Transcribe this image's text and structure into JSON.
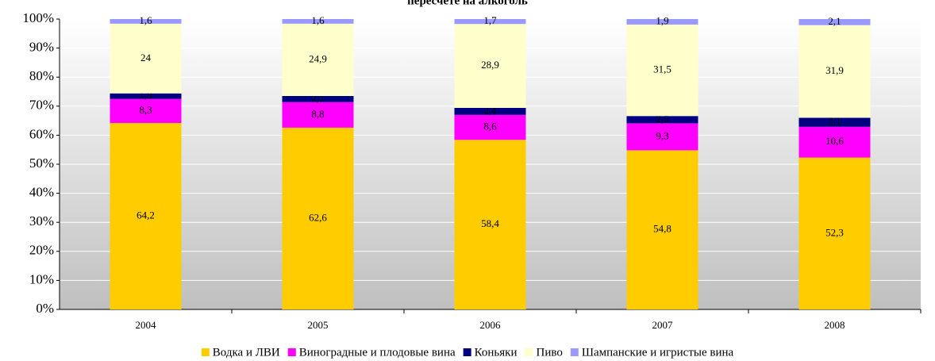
{
  "chart_data": {
    "type": "stacked_bar",
    "title": "пересчете на алкоголь",
    "categories": [
      "2004",
      "2005",
      "2006",
      "2007",
      "2008"
    ],
    "series": [
      {
        "name": "Водка и ЛВИ",
        "color": "#ffcc00",
        "values": [
          64.2,
          62.6,
          58.4,
          54.8,
          52.3
        ],
        "value_labels": [
          "64,2",
          "62,6",
          "58,4",
          "54,8",
          "52,3"
        ]
      },
      {
        "name": "Виноградные и плодовые вина",
        "color": "#ff00ff",
        "values": [
          8.3,
          8.8,
          8.6,
          9.3,
          10.6
        ],
        "value_labels": [
          "8,3",
          "8,8",
          "8,6",
          "9,3",
          "10,6"
        ]
      },
      {
        "name": "Коньяки",
        "color": "#000080",
        "values": [
          1.9,
          2.1,
          2.4,
          2.5,
          3.1
        ],
        "value_labels": [
          "1,9",
          "2,1",
          "2,4",
          "2,5",
          "3,1"
        ]
      },
      {
        "name": "Пиво",
        "color": "#ffffcc",
        "values": [
          24,
          24.9,
          28.9,
          31.5,
          31.9
        ],
        "value_labels": [
          "24",
          "24,9",
          "28,9",
          "31,5",
          "31,9"
        ]
      },
      {
        "name": "Шампанские и игристые вина",
        "color": "#9999ff",
        "values": [
          1.6,
          1.6,
          1.7,
          1.9,
          2.1
        ],
        "value_labels": [
          "1,6",
          "1,6",
          "1,7",
          "1,9",
          "2,1"
        ]
      }
    ],
    "ylim": [
      0,
      100
    ],
    "yticks": [
      {
        "value": 0,
        "label": "0%"
      },
      {
        "value": 10,
        "label": "10%"
      },
      {
        "value": 20,
        "label": "20%"
      },
      {
        "value": 30,
        "label": "30%"
      },
      {
        "value": 40,
        "label": "40%"
      },
      {
        "value": 50,
        "label": "50%"
      },
      {
        "value": 60,
        "label": "60%"
      },
      {
        "value": 70,
        "label": "70%"
      },
      {
        "value": 80,
        "label": "80%"
      },
      {
        "value": 90,
        "label": "90%"
      },
      {
        "value": 100,
        "label": "100%"
      }
    ],
    "grid": true,
    "legend": "bottom"
  }
}
